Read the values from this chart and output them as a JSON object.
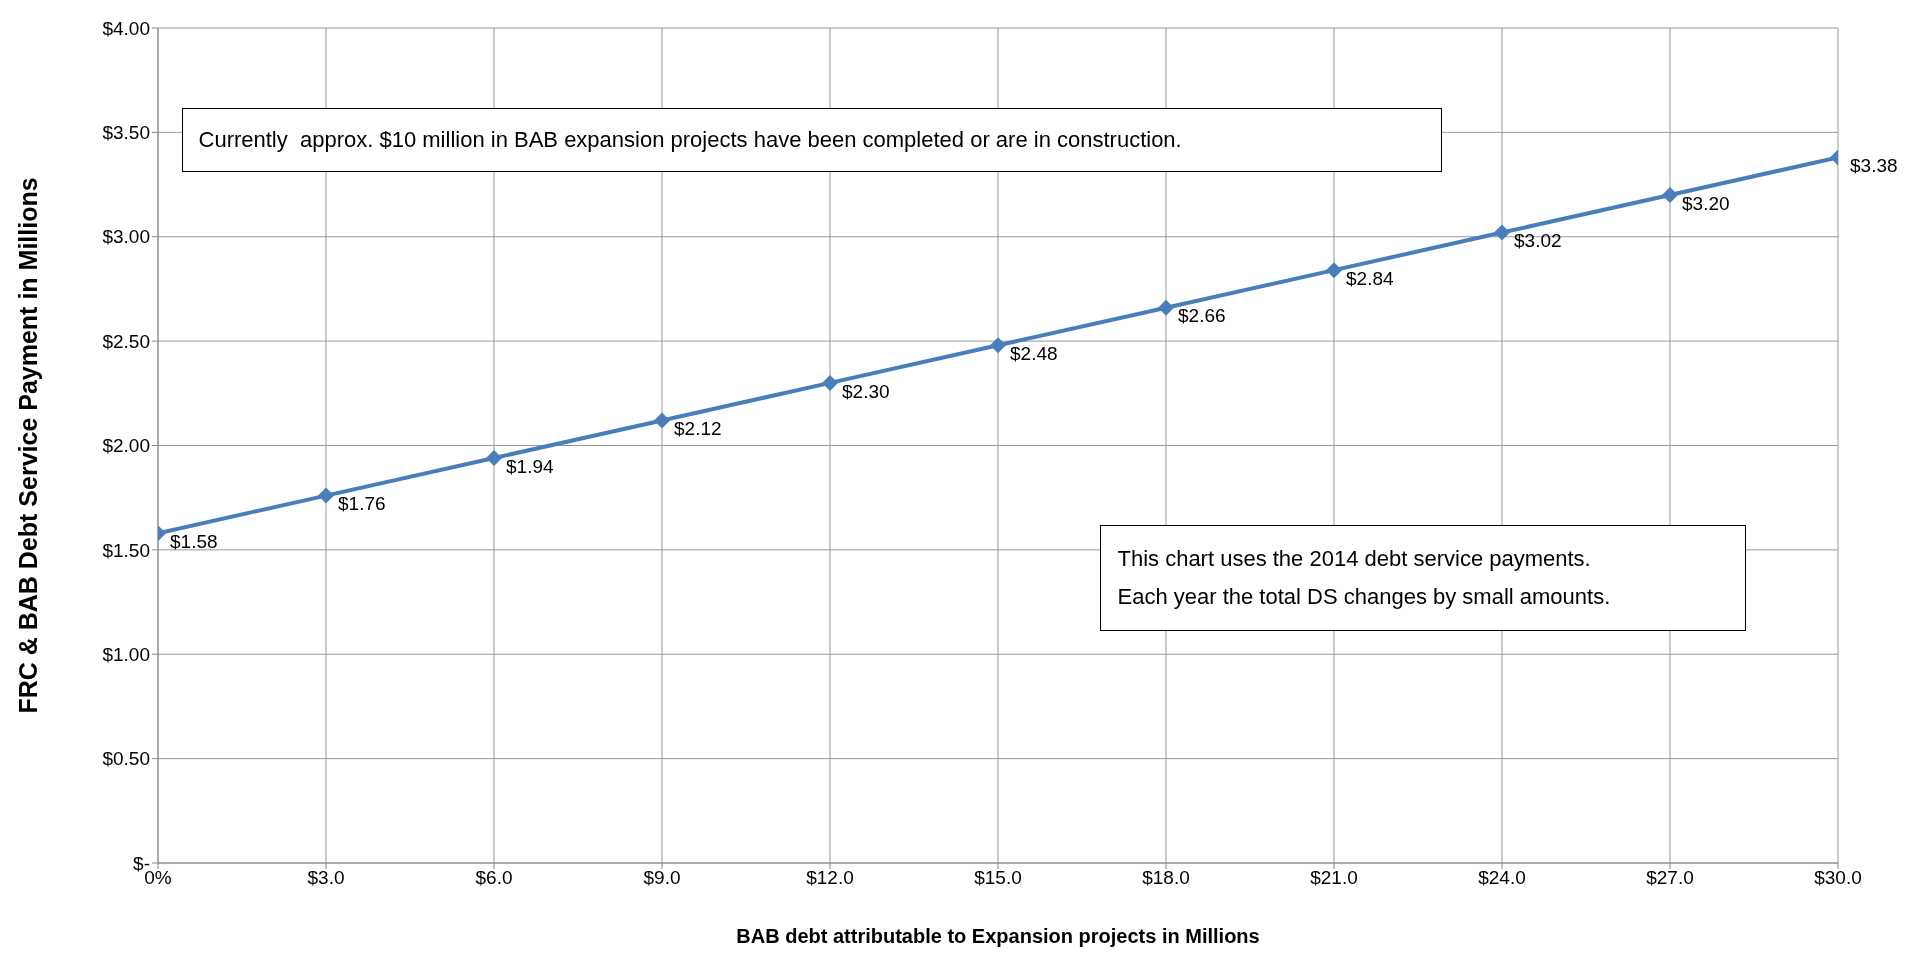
{
  "chart_data": {
    "type": "line",
    "xlabel": "BAB debt attributable to Expansion projects in Millions",
    "ylabel": "FRC & BAB Debt Service Payment in Millions",
    "x": [
      0,
      3,
      6,
      9,
      12,
      15,
      18,
      21,
      24,
      27,
      30
    ],
    "series": [
      {
        "color": "#4a7ebb",
        "values": [
          1.58,
          1.76,
          1.94,
          2.12,
          2.3,
          2.48,
          2.66,
          2.84,
          3.02,
          3.2,
          3.38
        ],
        "value_labels": [
          "$1.58",
          "$1.76",
          "$1.94",
          "$2.12",
          "$2.30",
          "$2.48",
          "$2.66",
          "$2.84",
          "$3.02",
          "$3.20",
          "$3.38"
        ]
      }
    ],
    "xlim": [
      0,
      30
    ],
    "xticks": [
      {
        "value": 0,
        "label": "0%"
      },
      {
        "value": 3,
        "label": "$3.0"
      },
      {
        "value": 6,
        "label": "$6.0"
      },
      {
        "value": 9,
        "label": "$9.0"
      },
      {
        "value": 12,
        "label": "$12.0"
      },
      {
        "value": 15,
        "label": "$15.0"
      },
      {
        "value": 18,
        "label": "$18.0"
      },
      {
        "value": 21,
        "label": "$21.0"
      },
      {
        "value": 24,
        "label": "$24.0"
      },
      {
        "value": 27,
        "label": "$27.0"
      },
      {
        "value": 30,
        "label": "$30.0"
      }
    ],
    "ylim": [
      0,
      4
    ],
    "yticks": [
      {
        "value": 0,
        "label": "$-"
      },
      {
        "value": 0.5,
        "label": "$0.50"
      },
      {
        "value": 1,
        "label": "$1.00"
      },
      {
        "value": 1.5,
        "label": "$1.50"
      },
      {
        "value": 2,
        "label": "$2.00"
      },
      {
        "value": 2.5,
        "label": "$2.50"
      },
      {
        "value": 3,
        "label": "$3.00"
      },
      {
        "value": 3.5,
        "label": "$3.50"
      },
      {
        "value": 4,
        "label": "$4.00"
      }
    ],
    "grid": true,
    "marker": "diamond",
    "line_style": "solid",
    "legend": false,
    "annotations": [
      "Currently  approx. $10 million in BAB expansion projects have been completed or are in construction.",
      "This chart uses the 2014 debt service payments.\nEach year the total DS changes by small amounts."
    ]
  }
}
